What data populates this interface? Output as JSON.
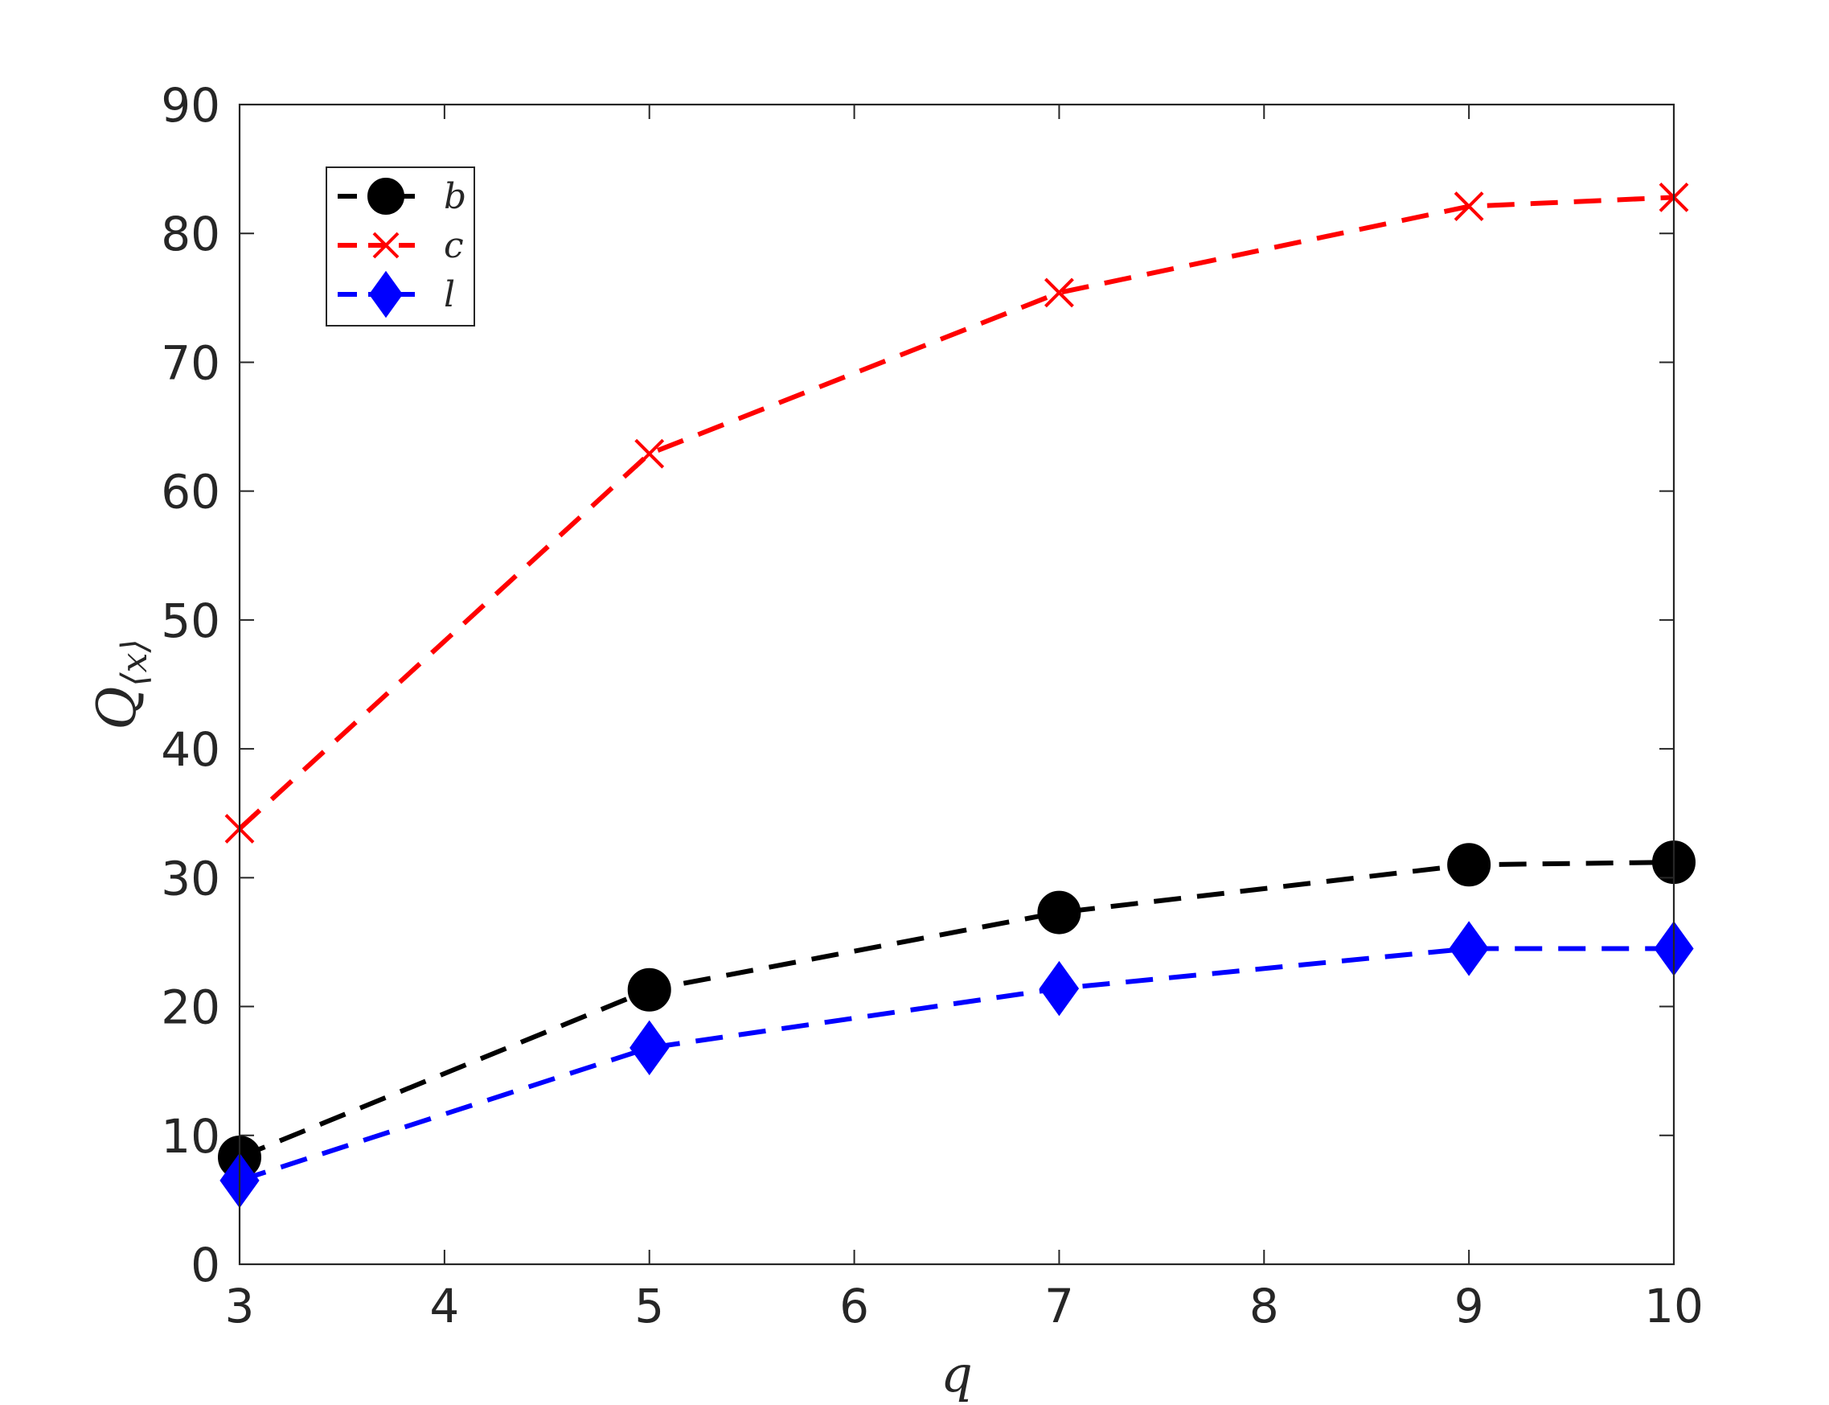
{
  "chart_data": {
    "type": "line",
    "title": "",
    "xlabel": "q",
    "ylabel_main": "Q",
    "ylabel_sub": "⟨x⟩",
    "xlim": [
      3,
      10
    ],
    "ylim": [
      0,
      90
    ],
    "x_ticks": [
      3,
      4,
      5,
      6,
      7,
      8,
      9,
      10
    ],
    "y_ticks": [
      0,
      10,
      20,
      30,
      40,
      50,
      60,
      70,
      80,
      90
    ],
    "grid": false,
    "legend_position": "top-left",
    "series": [
      {
        "name": "b",
        "color": "#000000",
        "marker": "circle",
        "line_style": "dashed",
        "x": [
          3,
          5,
          7,
          9,
          10
        ],
        "y": [
          8.3,
          21.3,
          27.3,
          31.0,
          31.2
        ]
      },
      {
        "name": "c",
        "color": "#ff0000",
        "marker": "x",
        "line_style": "dashed",
        "x": [
          3,
          5,
          7,
          9,
          10
        ],
        "y": [
          33.8,
          62.9,
          75.4,
          82.1,
          82.8
        ]
      },
      {
        "name": "l",
        "color": "#0000ff",
        "marker": "diamond",
        "line_style": "dashed",
        "x": [
          3,
          5,
          7,
          9,
          10
        ],
        "y": [
          6.5,
          16.8,
          21.4,
          24.5,
          24.5
        ]
      }
    ]
  }
}
